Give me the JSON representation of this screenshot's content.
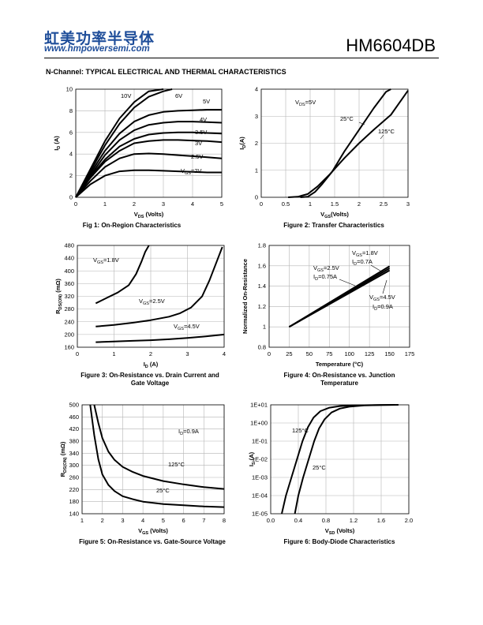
{
  "header": {
    "logo_cn": "虹美功率半导体",
    "logo_url": "www.hmpowersemi.com",
    "part_number": "HM6604DB"
  },
  "section_title": "N-Channel: TYPICAL ELECTRICAL AND THERMAL CHARACTERISTICS",
  "chart_data": [
    {
      "type": "line",
      "caption": "Fig 1: On-Region Characteristics",
      "xlabel": "VDS (Volts)",
      "ylabel": "ID (A)",
      "xlim": [
        0,
        5
      ],
      "ylim": [
        0,
        10
      ],
      "xticks": [
        0,
        1,
        2,
        3,
        4,
        5
      ],
      "yticks": [
        0,
        2,
        4,
        6,
        8,
        10
      ],
      "grid": true,
      "series": [
        {
          "name": "10V",
          "x": [
            0,
            0.5,
            1,
            1.5,
            2,
            2.5,
            3
          ],
          "y": [
            0,
            2.6,
            5.2,
            7.3,
            8.8,
            9.8,
            10.4
          ]
        },
        {
          "name": "6V",
          "x": [
            0,
            0.5,
            1,
            1.5,
            2,
            2.5,
            3,
            3.3
          ],
          "y": [
            0,
            2.4,
            4.8,
            6.8,
            8.3,
            9.3,
            9.8,
            10.0
          ]
        },
        {
          "name": "5V",
          "x": [
            0,
            0.5,
            1,
            1.5,
            2,
            2.5,
            3,
            3.5,
            4,
            4.5,
            5
          ],
          "y": [
            0,
            2.2,
            4.3,
            5.9,
            7,
            7.6,
            7.9,
            8.0,
            8.05,
            8.1,
            8.1
          ]
        },
        {
          "name": "4V",
          "x": [
            0,
            0.5,
            1,
            1.5,
            2,
            2.5,
            3,
            3.5,
            4,
            4.5,
            5
          ],
          "y": [
            0,
            2.0,
            3.9,
            5.3,
            6.2,
            6.7,
            6.9,
            7.0,
            7.0,
            6.95,
            6.9
          ]
        },
        {
          "name": "3.5V",
          "x": [
            0,
            0.5,
            1,
            1.5,
            2,
            2.5,
            3,
            3.5,
            4,
            4.5,
            5
          ],
          "y": [
            0,
            1.9,
            3.5,
            4.7,
            5.4,
            5.8,
            5.95,
            6.0,
            6.0,
            5.95,
            5.9
          ]
        },
        {
          "name": "3V",
          "x": [
            0,
            0.5,
            1,
            1.5,
            2,
            2.5,
            3,
            3.5,
            4,
            4.5,
            5
          ],
          "y": [
            0,
            1.8,
            3.3,
            4.3,
            5.0,
            5.2,
            5.3,
            5.3,
            5.25,
            5.2,
            5.1
          ]
        },
        {
          "name": "2.5V",
          "x": [
            0,
            0.5,
            1,
            1.5,
            2,
            2.5,
            3,
            3.5,
            4,
            4.5,
            5
          ],
          "y": [
            0,
            1.5,
            2.8,
            3.6,
            4.0,
            4.05,
            4.0,
            3.9,
            3.8,
            3.7,
            3.6
          ]
        },
        {
          "name": "VGS=2V",
          "x": [
            0,
            0.5,
            1,
            1.5,
            2,
            2.5,
            3,
            3.5,
            4,
            4.5,
            5
          ],
          "y": [
            0,
            1.2,
            2.0,
            2.4,
            2.5,
            2.5,
            2.45,
            2.4,
            2.35,
            2.3,
            2.3
          ]
        }
      ]
    },
    {
      "type": "line",
      "caption": "Figure 2: Transfer Characteristics",
      "xlabel": "VGS(Volts)",
      "ylabel": "ID(A)",
      "xlim": [
        0,
        3
      ],
      "ylim": [
        0,
        4
      ],
      "xticks": [
        "0",
        "0.5",
        "1",
        "1.5",
        "2",
        "2.5",
        "3"
      ],
      "yticks": [
        0,
        1,
        2,
        3,
        4
      ],
      "grid": true,
      "annotation": "VDS=5V",
      "series": [
        {
          "name": "25°C",
          "x": [
            0.8,
            0.95,
            1.1,
            1.25,
            1.45,
            1.7,
            2.0,
            2.3,
            2.55,
            2.65
          ],
          "y": [
            0,
            0.02,
            0.2,
            0.5,
            0.95,
            1.7,
            2.5,
            3.3,
            3.9,
            4.0
          ]
        },
        {
          "name": "125°C",
          "x": [
            0.55,
            0.75,
            0.95,
            1.15,
            1.4,
            1.7,
            2.0,
            2.3,
            2.65,
            3.0
          ],
          "y": [
            0,
            0.02,
            0.12,
            0.4,
            0.85,
            1.45,
            2.0,
            2.5,
            3.05,
            3.95
          ]
        }
      ]
    },
    {
      "type": "line",
      "caption": "Figure 3: On-Resistance vs. Drain Current and Gate Voltage",
      "caption_lines": [
        "Figure 3: On-Resistance vs. Drain Current and",
        "Gate Voltage"
      ],
      "xlabel": "ID (A)",
      "ylabel": "RDS(ON) (mΩ)",
      "xlim": [
        0,
        4
      ],
      "ylim": [
        160,
        480
      ],
      "xticks": [
        0,
        1,
        2,
        3,
        4
      ],
      "yticks": [
        160,
        200,
        240,
        280,
        320,
        360,
        400,
        440,
        480
      ],
      "grid": true,
      "series": [
        {
          "name": "VGS=1.8V",
          "x": [
            0.5,
            0.8,
            1.1,
            1.4,
            1.6,
            1.75,
            1.85,
            1.95
          ],
          "y": [
            298,
            315,
            332,
            355,
            390,
            430,
            460,
            480
          ]
        },
        {
          "name": "VGS=2.5V",
          "x": [
            0.5,
            1,
            1.5,
            2,
            2.5,
            2.8,
            3.1,
            3.4,
            3.6,
            3.8,
            3.95
          ],
          "y": [
            225,
            230,
            237,
            245,
            256,
            267,
            285,
            320,
            370,
            430,
            475
          ]
        },
        {
          "name": "VGS=4.5V",
          "x": [
            0.5,
            1,
            1.5,
            2,
            2.5,
            3,
            3.5,
            4
          ],
          "y": [
            176,
            178,
            180,
            182,
            185,
            189,
            194,
            200
          ]
        }
      ]
    },
    {
      "type": "line",
      "caption": "Figure 4: On-Resistance vs. Junction Temperature",
      "caption_lines": [
        "Figure 4: On-Resistance vs. Junction",
        "Temperature"
      ],
      "xlabel": "Temperature (°C)",
      "ylabel": "Normalized On-Resistance",
      "xlim": [
        0,
        175
      ],
      "ylim": [
        0.8,
        1.8
      ],
      "xticks": [
        "0",
        "25",
        "50",
        "75",
        "100",
        "125",
        "150",
        "175"
      ],
      "yticks": [
        "0.8",
        "1",
        "1.2",
        "1.4",
        "1.6",
        "1.8"
      ],
      "grid": true,
      "annotations": [
        [
          "VGS=1.8V",
          "ID=0.7A"
        ],
        [
          "VGS=2.5V",
          "ID=0.75A"
        ],
        [
          "VGS=4.5V",
          "ID=0.9A"
        ]
      ],
      "series": [
        {
          "name": "VGS=1.8V",
          "x": [
            25,
            150
          ],
          "y": [
            1.0,
            1.595
          ]
        },
        {
          "name": "VGS=2.5V",
          "x": [
            25,
            150
          ],
          "y": [
            1.0,
            1.575
          ]
        },
        {
          "name": "VGS=4.5V",
          "x": [
            25,
            150
          ],
          "y": [
            1.0,
            1.555
          ]
        }
      ]
    },
    {
      "type": "line",
      "caption": "Figure 5: On-Resistance vs. Gate-Source Voltage",
      "xlabel": "VGS (Volts)",
      "ylabel": "RDS(ON) (mΩ)",
      "xlim": [
        1,
        8
      ],
      "ylim": [
        140,
        500
      ],
      "xticks": [
        1,
        2,
        3,
        4,
        5,
        6,
        7,
        8
      ],
      "yticks": [
        140,
        180,
        220,
        260,
        300,
        340,
        380,
        420,
        460,
        500
      ],
      "grid": true,
      "annotation": "ID=0.9A",
      "series": [
        {
          "name": "125°C",
          "x": [
            1.6,
            1.8,
            2,
            2.3,
            2.6,
            3,
            3.5,
            4,
            5,
            6,
            7,
            8
          ],
          "y": [
            500,
            440,
            390,
            345,
            318,
            295,
            278,
            265,
            248,
            237,
            228,
            222
          ]
        },
        {
          "name": "25°C",
          "x": [
            1.4,
            1.6,
            1.8,
            2,
            2.3,
            2.6,
            3,
            3.5,
            4,
            5,
            6,
            7,
            8
          ],
          "y": [
            500,
            400,
            320,
            270,
            235,
            215,
            198,
            188,
            180,
            172,
            168,
            164,
            162
          ]
        }
      ]
    },
    {
      "type": "line",
      "caption": "Figure 6: Body-Diode Characteristics",
      "xlabel": "VSD (Volts)",
      "ylabel": "IS (A)",
      "xlim": [
        0,
        2
      ],
      "ylim_log10": [
        -5,
        1
      ],
      "xticks": [
        "0.0",
        "0.4",
        "0.8",
        "1.2",
        "1.6",
        "2.0"
      ],
      "yticks": [
        "1E-05",
        "1E-04",
        "1E-03",
        "1E-02",
        "1E-01",
        "1E+00",
        "1E+01"
      ],
      "log_y": true,
      "grid": true,
      "series": [
        {
          "name": "125°C",
          "x": [
            0.16,
            0.22,
            0.3,
            0.38,
            0.46,
            0.54,
            0.62,
            0.72,
            0.85,
            1.0,
            1.2,
            1.5,
            1.8
          ],
          "y": [
            1e-05,
            0.0001,
            0.001,
            0.01,
            0.1,
            0.6,
            2,
            4.5,
            7,
            8.5,
            9.3,
            9.8,
            10
          ]
        },
        {
          "name": "25°C",
          "x": [
            0.35,
            0.4,
            0.47,
            0.55,
            0.63,
            0.7,
            0.78,
            0.88,
            1.0,
            1.15,
            1.35,
            1.6,
            1.85
          ],
          "y": [
            1e-05,
            0.0001,
            0.001,
            0.01,
            0.1,
            0.5,
            1.6,
            3.8,
            6.2,
            8,
            9.2,
            9.8,
            10
          ]
        }
      ]
    }
  ]
}
